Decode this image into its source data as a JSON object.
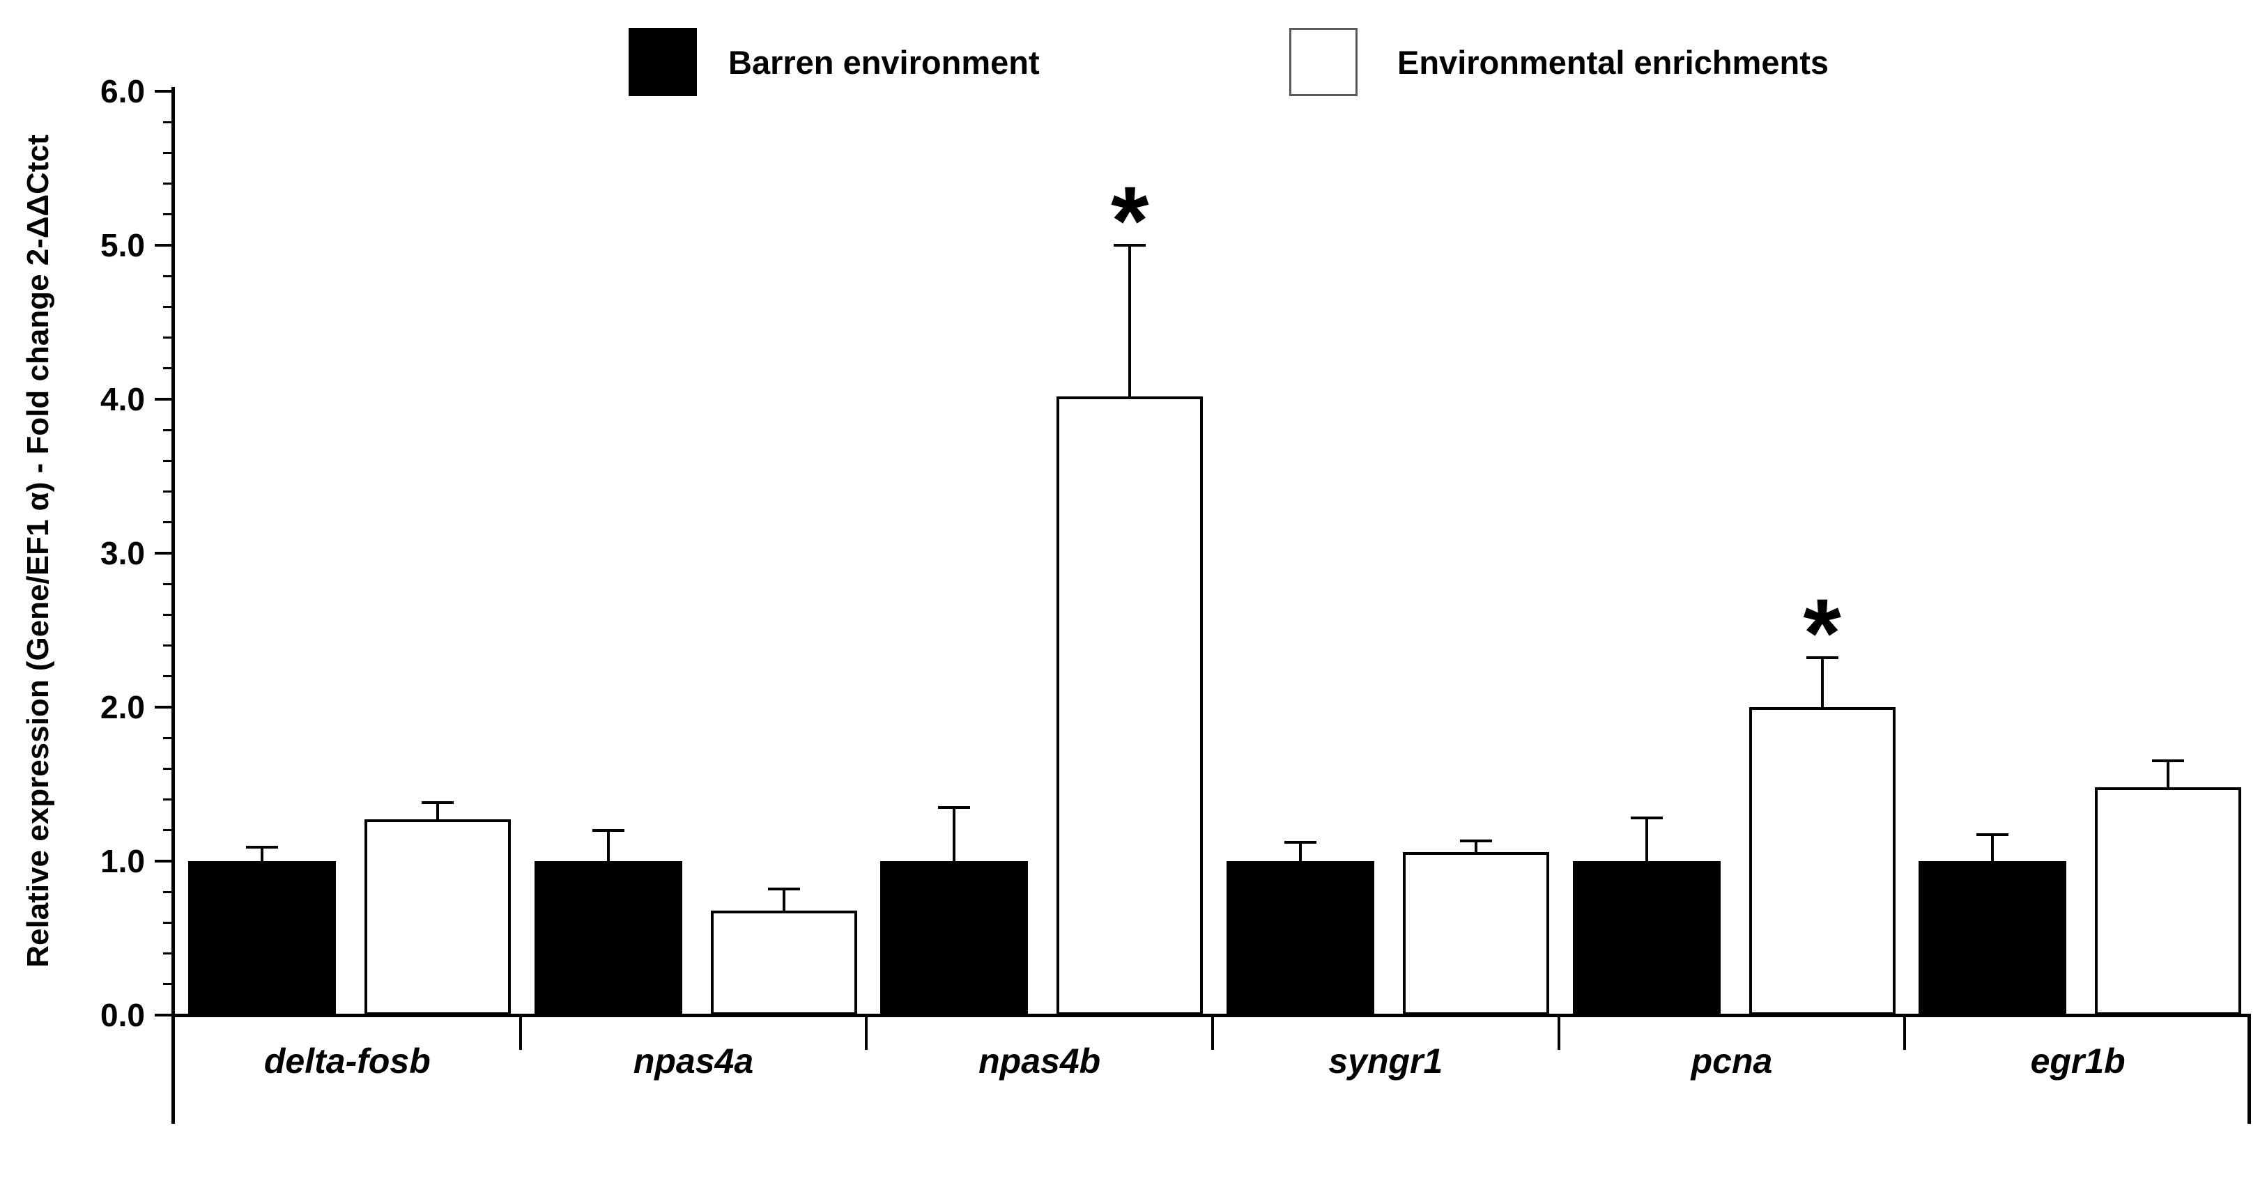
{
  "legend": {
    "items": [
      {
        "label": "Barren environment",
        "fill": "#000000",
        "border": "#000000"
      },
      {
        "label": "Environmental enrichments",
        "fill": "#ffffff",
        "border": "#595959"
      }
    ]
  },
  "chart_data": {
    "type": "bar",
    "title": "",
    "categories": [
      "delta-fosb",
      "npas4a",
      "npas4b",
      "syngr1",
      "pcna",
      "egr1b"
    ],
    "series": [
      {
        "name": "Barren environment",
        "fill": "#000000",
        "border": "#000000",
        "values": [
          1.0,
          1.0,
          1.0,
          1.0,
          1.0,
          1.0
        ],
        "errors": [
          0.09,
          0.2,
          0.35,
          0.12,
          0.28,
          0.17
        ],
        "significant": [
          false,
          false,
          false,
          false,
          false,
          false
        ]
      },
      {
        "name": "Environmental enrichments",
        "fill": "#ffffff",
        "border": "#000000",
        "values": [
          1.27,
          0.68,
          4.02,
          1.06,
          2.0,
          1.48
        ],
        "errors": [
          0.11,
          0.14,
          0.98,
          0.07,
          0.32,
          0.17
        ],
        "significant": [
          false,
          false,
          true,
          false,
          true,
          false
        ]
      }
    ],
    "xlabel": "",
    "ylabel": "Relative expression (Gene/EF1 α) - Fold change  2-ΔΔCtct",
    "ylim": [
      0.0,
      6.0
    ],
    "y_major_step": 1.0,
    "y_minor_step": 0.2,
    "y_tick_labels": [
      "0.0",
      "1.0",
      "2.0",
      "3.0",
      "4.0",
      "5.0",
      "6.0"
    ],
    "significance_marker": "*",
    "error_bars": "upper-only",
    "grid": false,
    "legend_position": "top"
  }
}
